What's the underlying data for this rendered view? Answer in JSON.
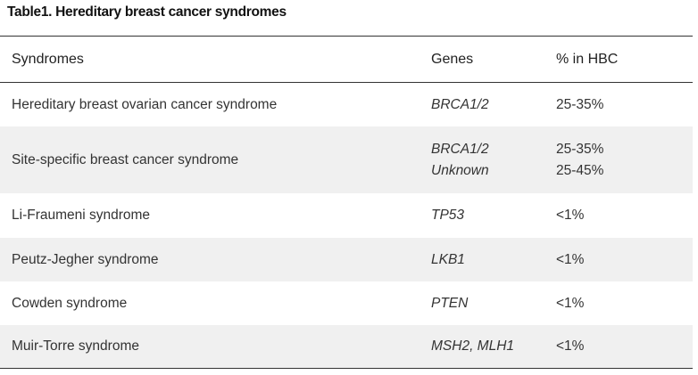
{
  "caption": "Table1. Hereditary breast cancer syndromes",
  "table": {
    "headers": [
      "Syndromes",
      "Genes",
      "% in HBC"
    ],
    "rows": [
      {
        "syndrome": "Hereditary breast ovarian cancer syndrome",
        "genes": [
          "BRCA1/2"
        ],
        "pct": [
          "25-35%"
        ]
      },
      {
        "syndrome": "Site-specific breast cancer syndrome",
        "genes": [
          "BRCA1/2",
          "Unknown"
        ],
        "pct": [
          "25-35%",
          "25-45%"
        ]
      },
      {
        "syndrome": "Li-Fraumeni syndrome",
        "genes": [
          "TP53"
        ],
        "pct": [
          "<1%"
        ]
      },
      {
        "syndrome": "Peutz-Jegher syndrome",
        "genes": [
          "LKB1"
        ],
        "pct": [
          "<1%"
        ]
      },
      {
        "syndrome": "Cowden syndrome",
        "genes": [
          "PTEN"
        ],
        "pct": [
          "<1%"
        ]
      },
      {
        "syndrome": "Muir-Torre syndrome",
        "genes": [
          "MSH2, MLH1"
        ],
        "pct": [
          "<1%"
        ]
      }
    ]
  }
}
